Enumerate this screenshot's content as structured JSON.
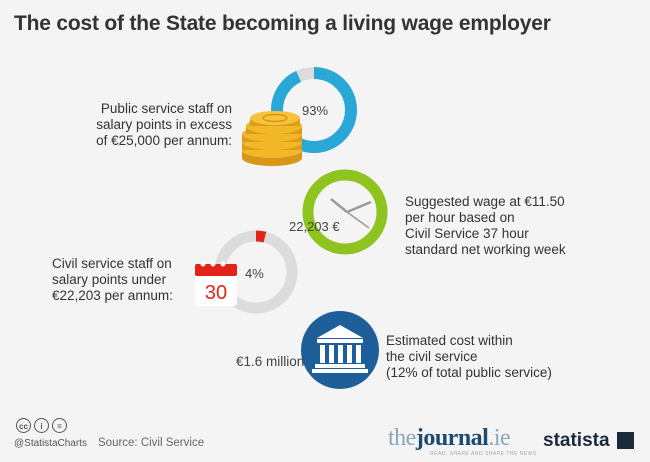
{
  "title": "The cost of the State becoming a living wage employer",
  "chart_data": {
    "type": "infographic",
    "items": [
      {
        "label": "Public service staff on salary points in excess of €25,000 per annum:",
        "value": 93,
        "value_text": "93%",
        "color": "#29a7d6"
      },
      {
        "label": "Suggested wage at €11.50 per hour based on Civil Service 37 hour standard net working week",
        "value_text": "22,203 €",
        "color": "#8fc31f"
      },
      {
        "label": "Civil service staff on salary points under €22,203 per annum:",
        "value": 4,
        "value_text": "4%",
        "color": "#e2231a"
      },
      {
        "label": "Estimated cost within the civil service (12% of total public service)",
        "value_text": "€1.6 million",
        "color": "#1f5f99"
      }
    ]
  },
  "labels": {
    "public_lines": [
      "Public service staff on",
      "salary points in excess",
      "of €25,000 per annum:"
    ],
    "suggested_lines": [
      "Suggested wage at €11.50",
      "per hour based on",
      "Civil Service 37 hour",
      "standard net working week"
    ],
    "civil_lines": [
      "Civil service staff on",
      "salary points under",
      "€22,203 per annum:"
    ],
    "estimated_lines": [
      "Estimated cost within",
      "the civil service",
      "(12% of total public service)"
    ]
  },
  "calendar_day": "30",
  "footer": {
    "handle": "@StatistaCharts",
    "source": "Source: Civil Service",
    "cc_icons": [
      "cc",
      "i",
      "="
    ],
    "journal_a": "the",
    "journal_b": "journal",
    "journal_c": ".ie",
    "journal_tag": "READ, SHARE AND SHAPE THE NEWS",
    "brand": "statista"
  },
  "colors": {
    "ring_track": "#dcdcdc",
    "coin": "#f0b020",
    "bank": "#1f5f99"
  }
}
